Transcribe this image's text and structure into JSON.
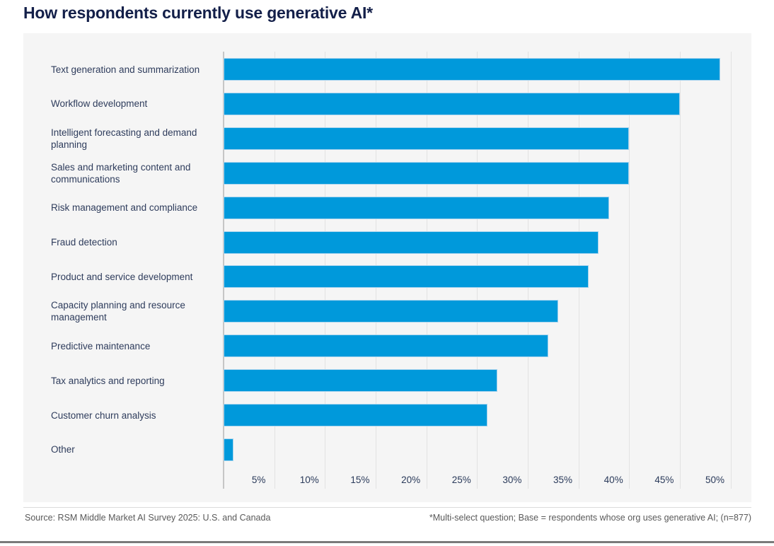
{
  "chart_data": {
    "type": "bar",
    "orientation": "horizontal",
    "title": "How respondents currently use generative AI*",
    "categories": [
      "Text generation and summarization",
      "Workflow development",
      "Intelligent forecasting and demand planning",
      "Sales and marketing content and communications",
      "Risk management and compliance",
      "Fraud detection",
      "Product and service development",
      "Capacity planning and resource management",
      "Predictive maintenance",
      "Tax analytics and reporting",
      "Customer churn analysis",
      "Other"
    ],
    "values": [
      49,
      45,
      40,
      40,
      38,
      37,
      36,
      33,
      32,
      27,
      26,
      1
    ],
    "unit": "%",
    "xlim": [
      0,
      50
    ],
    "x_tick_labels": [
      "5%",
      "10%",
      "15%",
      "20%",
      "25%",
      "30%",
      "35%",
      "40%",
      "45%",
      "50%"
    ],
    "grid": "vertical",
    "legend": "none",
    "bar_color": "#0099db"
  },
  "footer": {
    "source": "Source: RSM Middle Market AI Survey 2025: U.S. and Canada",
    "note": "*Multi-select question; Base = respondents whose org uses generative AI; (n=877)"
  },
  "colors": {
    "bar": "#0099db",
    "title": "#131f49",
    "panel": "#f5f5f5",
    "gridline": "#e2e2e2",
    "footer_text": "#595959",
    "bottom_rule": "#7a7a7a"
  }
}
